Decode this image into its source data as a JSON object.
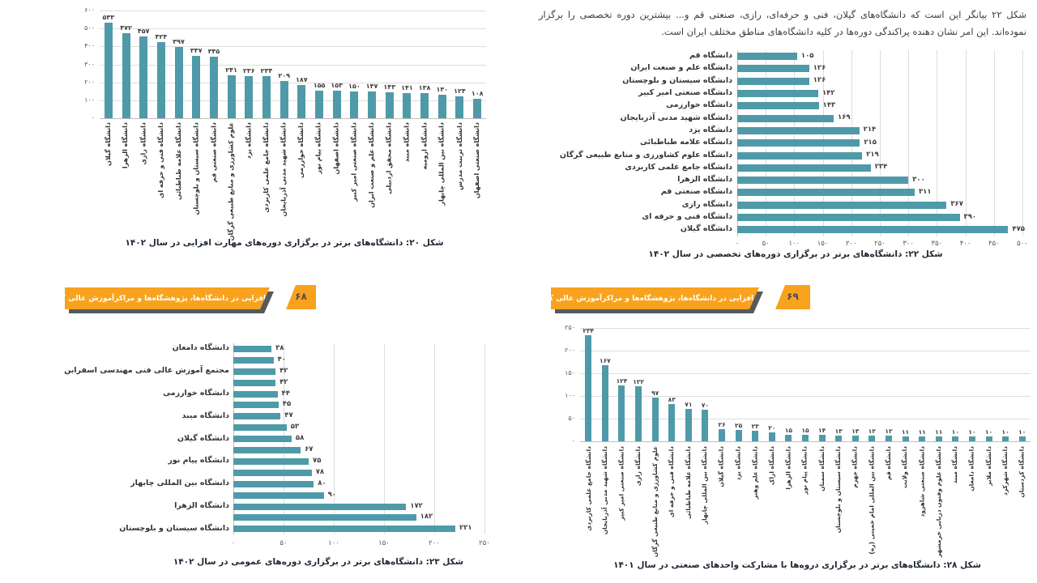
{
  "colors": {
    "bar": "#4f9aa8",
    "banner": "#f8a21e",
    "banner_shadow": "#58595b",
    "banner_text": "#ffffff",
    "banner_number": "#4d4d4f",
    "grid": "#dddddd",
    "axis": "#bfbfbf",
    "text_dark": "#333333",
    "value_text": "#404040",
    "tick_text": "#595959",
    "caption_text": "#1f2733",
    "paragraph_text": "#3d3d3d"
  },
  "intro_paragraph": "شکل ۲۲ بیانگر این است که دانشگاه‌های گیلان، فنی و حرفه‌ای، رازی، صنعتی قم و... بیشترین دوره تخصصی را برگزار نموده‌اند. این امر نشان دهنده پراکندگی دوره‌ها در کلیه دانشگاه‌های مناطق مختلف ایران است.",
  "banners": {
    "left": {
      "number": "۶۸",
      "title": "مهارت‌افزایی در دانشگاه‌ها، پژوهشگاه‌ها و مراکزآموزش عالی کشور"
    },
    "right": {
      "number": "۶۹",
      "title": "مهارت‌افزایی در دانشگاه‌ها، پژوهشگاه‌ها و مراکزآموزش عالی کشور"
    }
  },
  "chart_data": [
    {
      "id": "chart20",
      "type": "bar",
      "orientation": "vertical",
      "title": "شکل ۲۰: دانشگاه‌های برتر در برگزاری دوره‌های مهارت افزایی در سال ۱۴۰۲",
      "categories": [
        "دانشگاه گیلان",
        "دانشگاه الزهرا",
        "دانشگاه رازی",
        "دانشگاه فنی و حرفه ای",
        "دانشگاه علامه طباطبائی",
        "دانشگاه سیستان و بلوچستان",
        "دانشگاه صنعتی قم",
        "علوم کشاورزی و منابع طبیعی گرگان",
        "دانشگاه یزد",
        "دانشگاه جامع علمی کاربردی",
        "دانشگاه شهید مدنی آذربایجان",
        "دانشگاه خوارزمی",
        "دانشگاه پیام نور",
        "دانشگاه اصفهان",
        "دانشگاه صنعتی امیر کبیر",
        "دانشگاه علم و صنعت ایران",
        "دانشگاه محقق اردبیلی",
        "دانشگاه میبد",
        "دانشگاه ارومیه",
        "دانشگاه بین المللی چابهار",
        "دانشگاه تربیت مدرس",
        "دانشگاه صنعتی اصفهان"
      ],
      "values": [
        533,
        472,
        457,
        424,
        397,
        347,
        345,
        241,
        236,
        234,
        209,
        187,
        155,
        153,
        150,
        147,
        143,
        141,
        138,
        130,
        124,
        108
      ],
      "ylim": [
        0,
        600
      ],
      "ytick_step": 100,
      "grid": true,
      "legend": false
    },
    {
      "id": "chart22",
      "type": "bar",
      "orientation": "horizontal",
      "title": "شکل ۲۲: دانشگاه‌های برتر در برگزاری دوره‌های تخصصی در سال ۱۴۰۲",
      "categories": [
        "دانشگاه قم",
        "دانشگاه علم و صنعت ایران",
        "دانشگاه سیستان و بلوچستان",
        "دانشگاه صنعتی امیر کبیر",
        "دانشگاه خوارزمی",
        "دانشگاه شهید مدنی آذربایجان",
        "دانشگاه یزد",
        "دانشگاه علامه طباطبائی",
        "دانشگاه علوم کشاورزی و منابع طبیعی گرگان",
        "دانشگاه جامع علمی کاربردی",
        "دانشگاه الزهرا",
        "دانشگاه صنعتی قم",
        "دانشگاه رازی",
        "دانشگاه فنی و حرفه ای",
        "دانشگاه گیلان"
      ],
      "values": [
        105,
        126,
        126,
        142,
        143,
        169,
        214,
        215,
        219,
        234,
        300,
        311,
        367,
        390,
        475
      ],
      "xlim": [
        0,
        500
      ],
      "xtick_step": 50,
      "grid": true,
      "legend": false
    },
    {
      "id": "chart23",
      "type": "bar",
      "orientation": "horizontal",
      "title": "شکل ۲۳: دانشگاه‌های برتر در برگزاری دوره‌های عمومی در سال ۱۴۰۲",
      "categories": [
        "دانشگاه دامغان",
        "",
        "مجتمع آموزش عالی فنی مهندسی اسفراین",
        "",
        "دانشگاه خوارزمی",
        "",
        "دانشگاه میبد",
        "",
        "دانشگاه گیلان",
        "",
        "دانشگاه پیام نور",
        "",
        "دانشگاه بین المللی چابهار",
        "",
        "دانشگاه الزهرا",
        "",
        "دانشگاه سیستان و بلوچستان"
      ],
      "values": [
        38,
        40,
        42,
        42,
        44,
        45,
        47,
        53,
        58,
        67,
        75,
        78,
        80,
        90,
        172,
        182,
        221
      ],
      "xlim": [
        0,
        250
      ],
      "xtick_step": 50,
      "grid": true,
      "legend": false
    },
    {
      "id": "chart28",
      "type": "bar",
      "orientation": "vertical",
      "title": "شکل ۲۸: دانشگاه‌های برتر در برگزاری دروه‌ها با مشارکت واحدهای صنعتی در سال ۱۴۰۱",
      "categories": [
        "دانشگاه جامع علمی کاربردی",
        "دانشگاه شهید مدنی آذربایجان",
        "دانشگاه صنعتی امیر کبیر",
        "دانشگاه رازی",
        "علوم کشاورزی و منابع طبیعی گرگان",
        "دانشگاه فنی و حرفه ای",
        "دانشگاه علامه طباطبائی",
        "دانشگاه بین المللی چابهار",
        "دانشگاه گیلان",
        "دانشگاه یزد",
        "دانشگاه علم وهنر",
        "دانشگاه اراک",
        "دانشگاه الزهرا",
        "دانشگاه پیام نور",
        "دانشگاه سمنان",
        "دانشگاه سیستان و بلوچستان",
        "دانشگاه جهرم",
        "دانشگاه بین المللی امام خمینی (ره)",
        "دانشگاه قم",
        "دانشگاه ولایت",
        "دانشگاه صنعتی شاهرود",
        "دانشگاه علوم وفنون دریایی خرمشهر",
        "دانشگاه میبد",
        "دانشگاه دامغان",
        "دانشگاه ملایر",
        "دانشگاه شهرکرد",
        "دانشگاه کردستان"
      ],
      "values": [
        234,
        167,
        124,
        122,
        97,
        83,
        71,
        70,
        26,
        25,
        23,
        20,
        15,
        15,
        14,
        13,
        13,
        12,
        12,
        11,
        11,
        11,
        10,
        10,
        10,
        10,
        10
      ],
      "ylim": [
        0,
        250
      ],
      "ytick_step": 50,
      "grid": true,
      "legend": false
    }
  ]
}
